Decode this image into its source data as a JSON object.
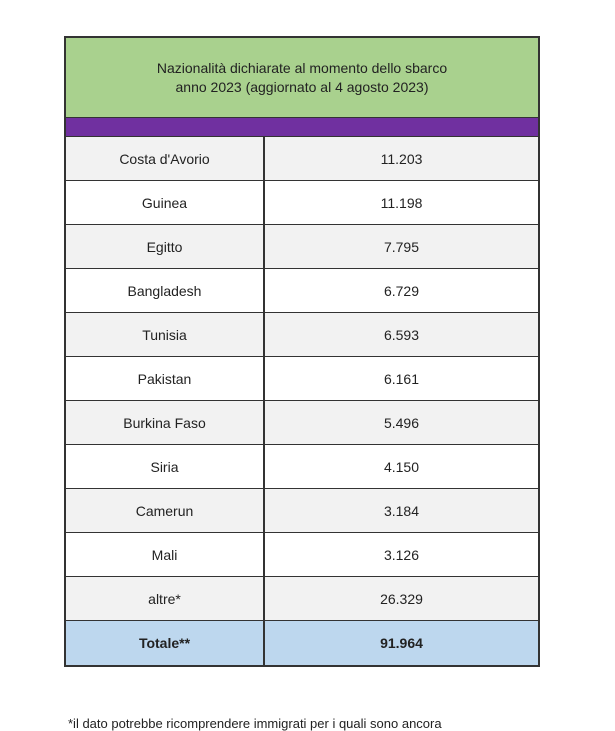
{
  "table": {
    "title": [
      "Nazionalità dichiarate al momento dello sbarco",
      "anno 2023 (aggiornato al 4 agosto 2023)"
    ],
    "rows": [
      [
        "Costa d'Avorio",
        "11.203"
      ],
      [
        "Guinea",
        "11.198"
      ],
      [
        "Egitto",
        "7.795"
      ],
      [
        "Bangladesh",
        "6.729"
      ],
      [
        "Tunisia",
        "6.593"
      ],
      [
        "Pakistan",
        "6.161"
      ],
      [
        "Burkina Faso",
        "5.496"
      ],
      [
        "Siria",
        "4.150"
      ],
      [
        "Camerun",
        "3.184"
      ],
      [
        "Mali",
        "3.126"
      ],
      [
        "altre*",
        "26.329"
      ]
    ],
    "total": [
      "Totale**",
      "91.964"
    ]
  },
  "footnote": "*il dato potrebbe ricomprendere immigrati per i quali sono ancora"
}
